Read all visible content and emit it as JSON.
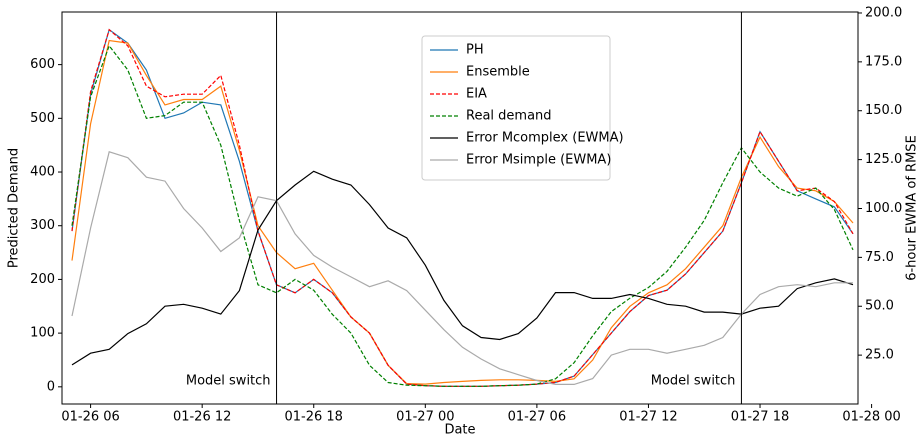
{
  "chart_data": {
    "type": "line",
    "xlabel": "Date",
    "ylabel": "Predicted Demand",
    "y2label": "6-hour EWMA of RMSE",
    "x": [
      "01-26 05",
      "01-26 06",
      "01-26 07",
      "01-26 08",
      "01-26 09",
      "01-26 10",
      "01-26 11",
      "01-26 12",
      "01-26 13",
      "01-26 14",
      "01-26 15",
      "01-26 16",
      "01-26 17",
      "01-26 18",
      "01-26 19",
      "01-26 20",
      "01-26 21",
      "01-26 22",
      "01-26 23",
      "01-27 00",
      "01-27 01",
      "01-27 02",
      "01-27 03",
      "01-27 04",
      "01-27 05",
      "01-27 06",
      "01-27 07",
      "01-27 08",
      "01-27 09",
      "01-27 10",
      "01-27 11",
      "01-27 12",
      "01-27 13",
      "01-27 14",
      "01-27 15",
      "01-27 16",
      "01-27 17",
      "01-27 18",
      "01-27 19",
      "01-27 20",
      "01-27 21",
      "01-27 22",
      "01-27 23"
    ],
    "xlim": [
      "01-26 05",
      "01-27 23"
    ],
    "xticks": [
      "01-26 06",
      "01-26 12",
      "01-26 18",
      "01-27 00",
      "01-27 06",
      "01-27 12",
      "01-27 18",
      "01-28 00"
    ],
    "ylim": [
      -32,
      698
    ],
    "yticks": [
      0,
      100,
      200,
      300,
      400,
      500,
      600
    ],
    "y2lim": [
      0,
      200.5
    ],
    "y2ticks": [
      {
        "value": 25,
        "label": "25.0"
      },
      {
        "value": 50,
        "label": "50.0"
      },
      {
        "value": 75,
        "label": "75.0"
      },
      {
        "value": 100,
        "label": "100.0"
      },
      {
        "value": 125,
        "label": "125.0"
      },
      {
        "value": 150,
        "label": "150.0"
      },
      {
        "value": 175,
        "label": "175.0"
      },
      {
        "value": 200,
        "label": "200.0"
      }
    ],
    "legend": "upper center",
    "series": [
      {
        "name": "PH",
        "color": "#1f77b4",
        "style": "solid",
        "values": [
          290,
          545,
          665,
          640,
          590,
          500,
          510,
          530,
          525,
          420,
          290,
          190,
          175,
          200,
          175,
          130,
          100,
          40,
          5,
          2,
          1,
          1,
          1,
          2,
          3,
          5,
          8,
          20,
          60,
          100,
          140,
          170,
          180,
          210,
          250,
          290,
          380,
          475,
          420,
          365,
          350,
          335,
          285
        ]
      },
      {
        "name": "Ensemble",
        "color": "#ff7f0e",
        "style": "solid",
        "values": [
          235,
          490,
          645,
          640,
          580,
          525,
          535,
          535,
          560,
          440,
          300,
          250,
          220,
          230,
          180,
          130,
          100,
          40,
          6,
          5,
          8,
          10,
          12,
          13,
          13,
          12,
          10,
          15,
          50,
          110,
          150,
          175,
          190,
          220,
          260,
          300,
          390,
          465,
          410,
          370,
          365,
          345,
          305
        ]
      },
      {
        "name": "EIA",
        "color": "#ff0000",
        "style": "dashed",
        "values": [
          290,
          550,
          665,
          635,
          560,
          540,
          545,
          545,
          580,
          450,
          290,
          190,
          175,
          200,
          175,
          130,
          100,
          40,
          5,
          2,
          1,
          1,
          1,
          2,
          3,
          5,
          8,
          20,
          60,
          100,
          140,
          170,
          180,
          210,
          250,
          290,
          380,
          475,
          420,
          365,
          370,
          345,
          285
        ]
      },
      {
        "name": "Real demand",
        "color": "#008000",
        "style": "dashed",
        "values": [
          300,
          540,
          635,
          590,
          500,
          505,
          530,
          530,
          450,
          310,
          190,
          175,
          200,
          180,
          135,
          100,
          40,
          8,
          3,
          2,
          1,
          1,
          1,
          2,
          3,
          5,
          15,
          45,
          95,
          140,
          165,
          185,
          215,
          260,
          310,
          380,
          445,
          400,
          370,
          355,
          370,
          330,
          255
        ]
      },
      {
        "name": "Error Mcomplex (EWMA)",
        "color": "#000000",
        "style": "solid",
        "axis": "y2",
        "values": [
          20,
          26,
          28,
          36,
          41,
          50,
          51,
          49,
          46,
          58,
          89,
          104,
          112,
          119,
          115,
          112,
          102,
          90,
          85,
          71,
          53,
          40,
          34,
          33,
          36,
          44,
          57,
          57,
          54,
          54,
          56,
          54,
          51,
          50,
          47,
          47,
          46,
          49,
          50,
          59,
          62,
          64,
          61
        ]
      },
      {
        "name": "Error Msimple (EWMA)",
        "color": "#aaaaaa",
        "style": "solid",
        "axis": "y2",
        "values": [
          45,
          90,
          129,
          126,
          116,
          114,
          100,
          90,
          78,
          85,
          106,
          104,
          87,
          76,
          70,
          65,
          60,
          63,
          58,
          48,
          38,
          29,
          23,
          18,
          15,
          12,
          10,
          10,
          13,
          25,
          28,
          28,
          26,
          28,
          30,
          34,
          46,
          56,
          60,
          61,
          60,
          62,
          62
        ]
      }
    ],
    "annotations": [
      {
        "x": "01-26 16",
        "text": "Model switch"
      },
      {
        "x": "01-27 17",
        "text": "Model switch"
      }
    ]
  }
}
